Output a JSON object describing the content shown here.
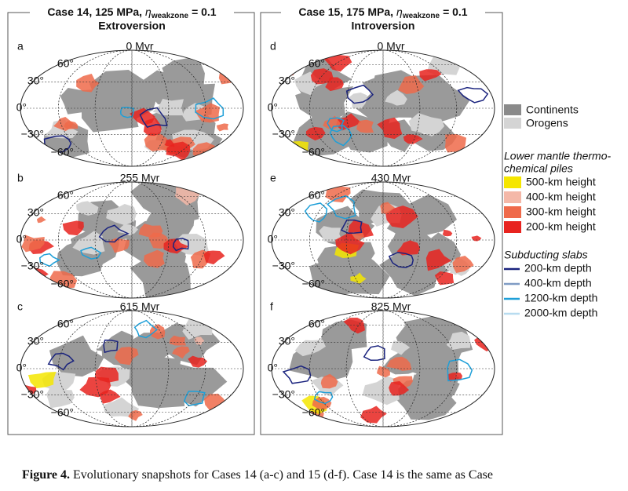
{
  "columns": [
    {
      "title": "Case 14, 125 MPa,",
      "symbol": "η",
      "subscript": "weakzone",
      "suffix": "= 0.1",
      "subtitle": "Extroversion",
      "panels": [
        {
          "letter": "a",
          "time": "0 Myr"
        },
        {
          "letter": "b",
          "time": "255 Myr"
        },
        {
          "letter": "c",
          "time": "615 Myr"
        }
      ]
    },
    {
      "title": "Case 15, 175 MPa,",
      "symbol": "η",
      "subscript": "weakzone",
      "suffix": "= 0.1",
      "subtitle": "Introversion",
      "panels": [
        {
          "letter": "d",
          "time": "0 Myr"
        },
        {
          "letter": "e",
          "time": "430 Myr"
        },
        {
          "letter": "f",
          "time": "825 Myr"
        }
      ]
    }
  ],
  "lat_labels": [
    "60°",
    "30°",
    "0°",
    "−30°",
    "−60°"
  ],
  "legend": {
    "surface": [
      "Continents",
      "Orogens"
    ],
    "piles_title": [
      "Lower mantle thermo-",
      "chemical piles"
    ],
    "piles": [
      "500-km height",
      "400-km height",
      "300-km height",
      "200-km height"
    ],
    "slabs_title": "Subducting slabs",
    "slabs": [
      "200-km depth",
      "400-km depth",
      "1200-km depth",
      "2000-km depth"
    ]
  },
  "caption": {
    "label": "Figure 4.",
    "text": " Evolutionary snapshots for Cases 14 (a-c) and 15 (d-f). Case 14 is the same as Case"
  }
}
